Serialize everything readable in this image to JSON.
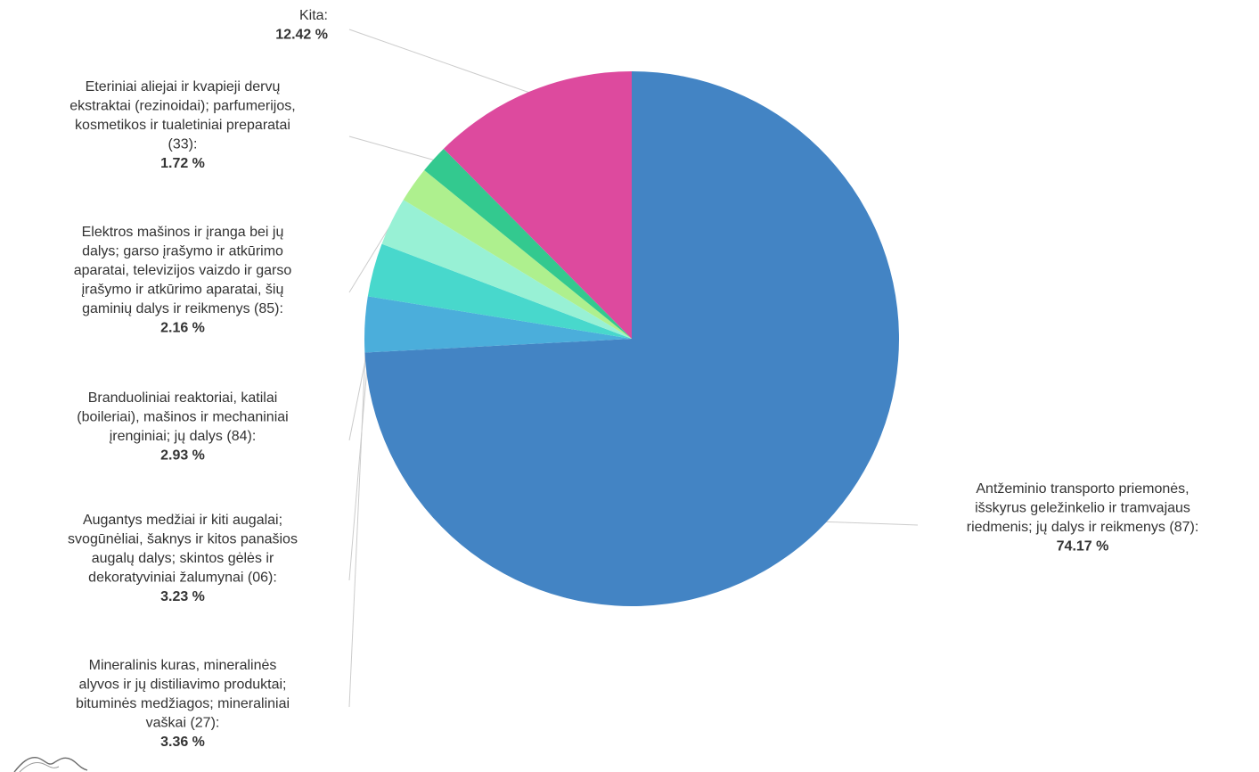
{
  "chart_data": {
    "type": "pie",
    "title": "",
    "unit": "%",
    "slices": [
      {
        "label": [
          "Antžeminio transporto priemonės,",
          "išskyrus geležinkelio ir tramvajaus",
          "riedmenis; jų dalys ir reikmenys (87):"
        ],
        "value": 74.17,
        "value_text": "74.17 %",
        "color": "#4384C4"
      },
      {
        "label": [
          "Mineralinis kuras, mineralinės",
          "alyvos ir jų distiliavimo produktai;",
          "bituminės medžiagos; mineraliniai",
          "vaškai (27):"
        ],
        "value": 3.36,
        "value_text": "3.36 %",
        "color": "#4BAEDB"
      },
      {
        "label": [
          "Augantys medžiai ir kiti augalai;",
          "svogūnėliai, šaknys ir kitos panašios",
          "augalų dalys; skintos gėlės ir",
          "dekoratyviniai žalumynai (06):"
        ],
        "value": 3.23,
        "value_text": "3.23 %",
        "color": "#48D8CC"
      },
      {
        "label": [
          "Branduoliniai reaktoriai, katilai",
          "(boileriai), mašinos ir mechaniniai",
          "įrenginiai; jų dalys (84):"
        ],
        "value": 2.93,
        "value_text": "2.93 %",
        "color": "#98F1D5"
      },
      {
        "label": [
          "Elektros mašinos ir įranga bei jų",
          "dalys; garso įrašymo ir atkūrimo",
          "aparatai, televizijos vaizdo ir garso",
          "įrašymo ir atkūrimo aparatai, šių",
          "gaminių dalys ir reikmenys (85):"
        ],
        "value": 2.16,
        "value_text": "2.16 %",
        "color": "#AEF08E"
      },
      {
        "label": [
          "Eteriniai aliejai ir kvapieji dervų",
          "ekstraktai (rezinoidai); parfumerijos,",
          "kosmetikos ir tualetiniai preparatai",
          "(33):"
        ],
        "value": 1.72,
        "value_text": "1.72 %",
        "color": "#33C98F"
      },
      {
        "label": [
          "Kita:"
        ],
        "value": 12.42,
        "value_text": "12.42 %",
        "color": "#DD4A9E"
      }
    ],
    "legend": "none"
  }
}
